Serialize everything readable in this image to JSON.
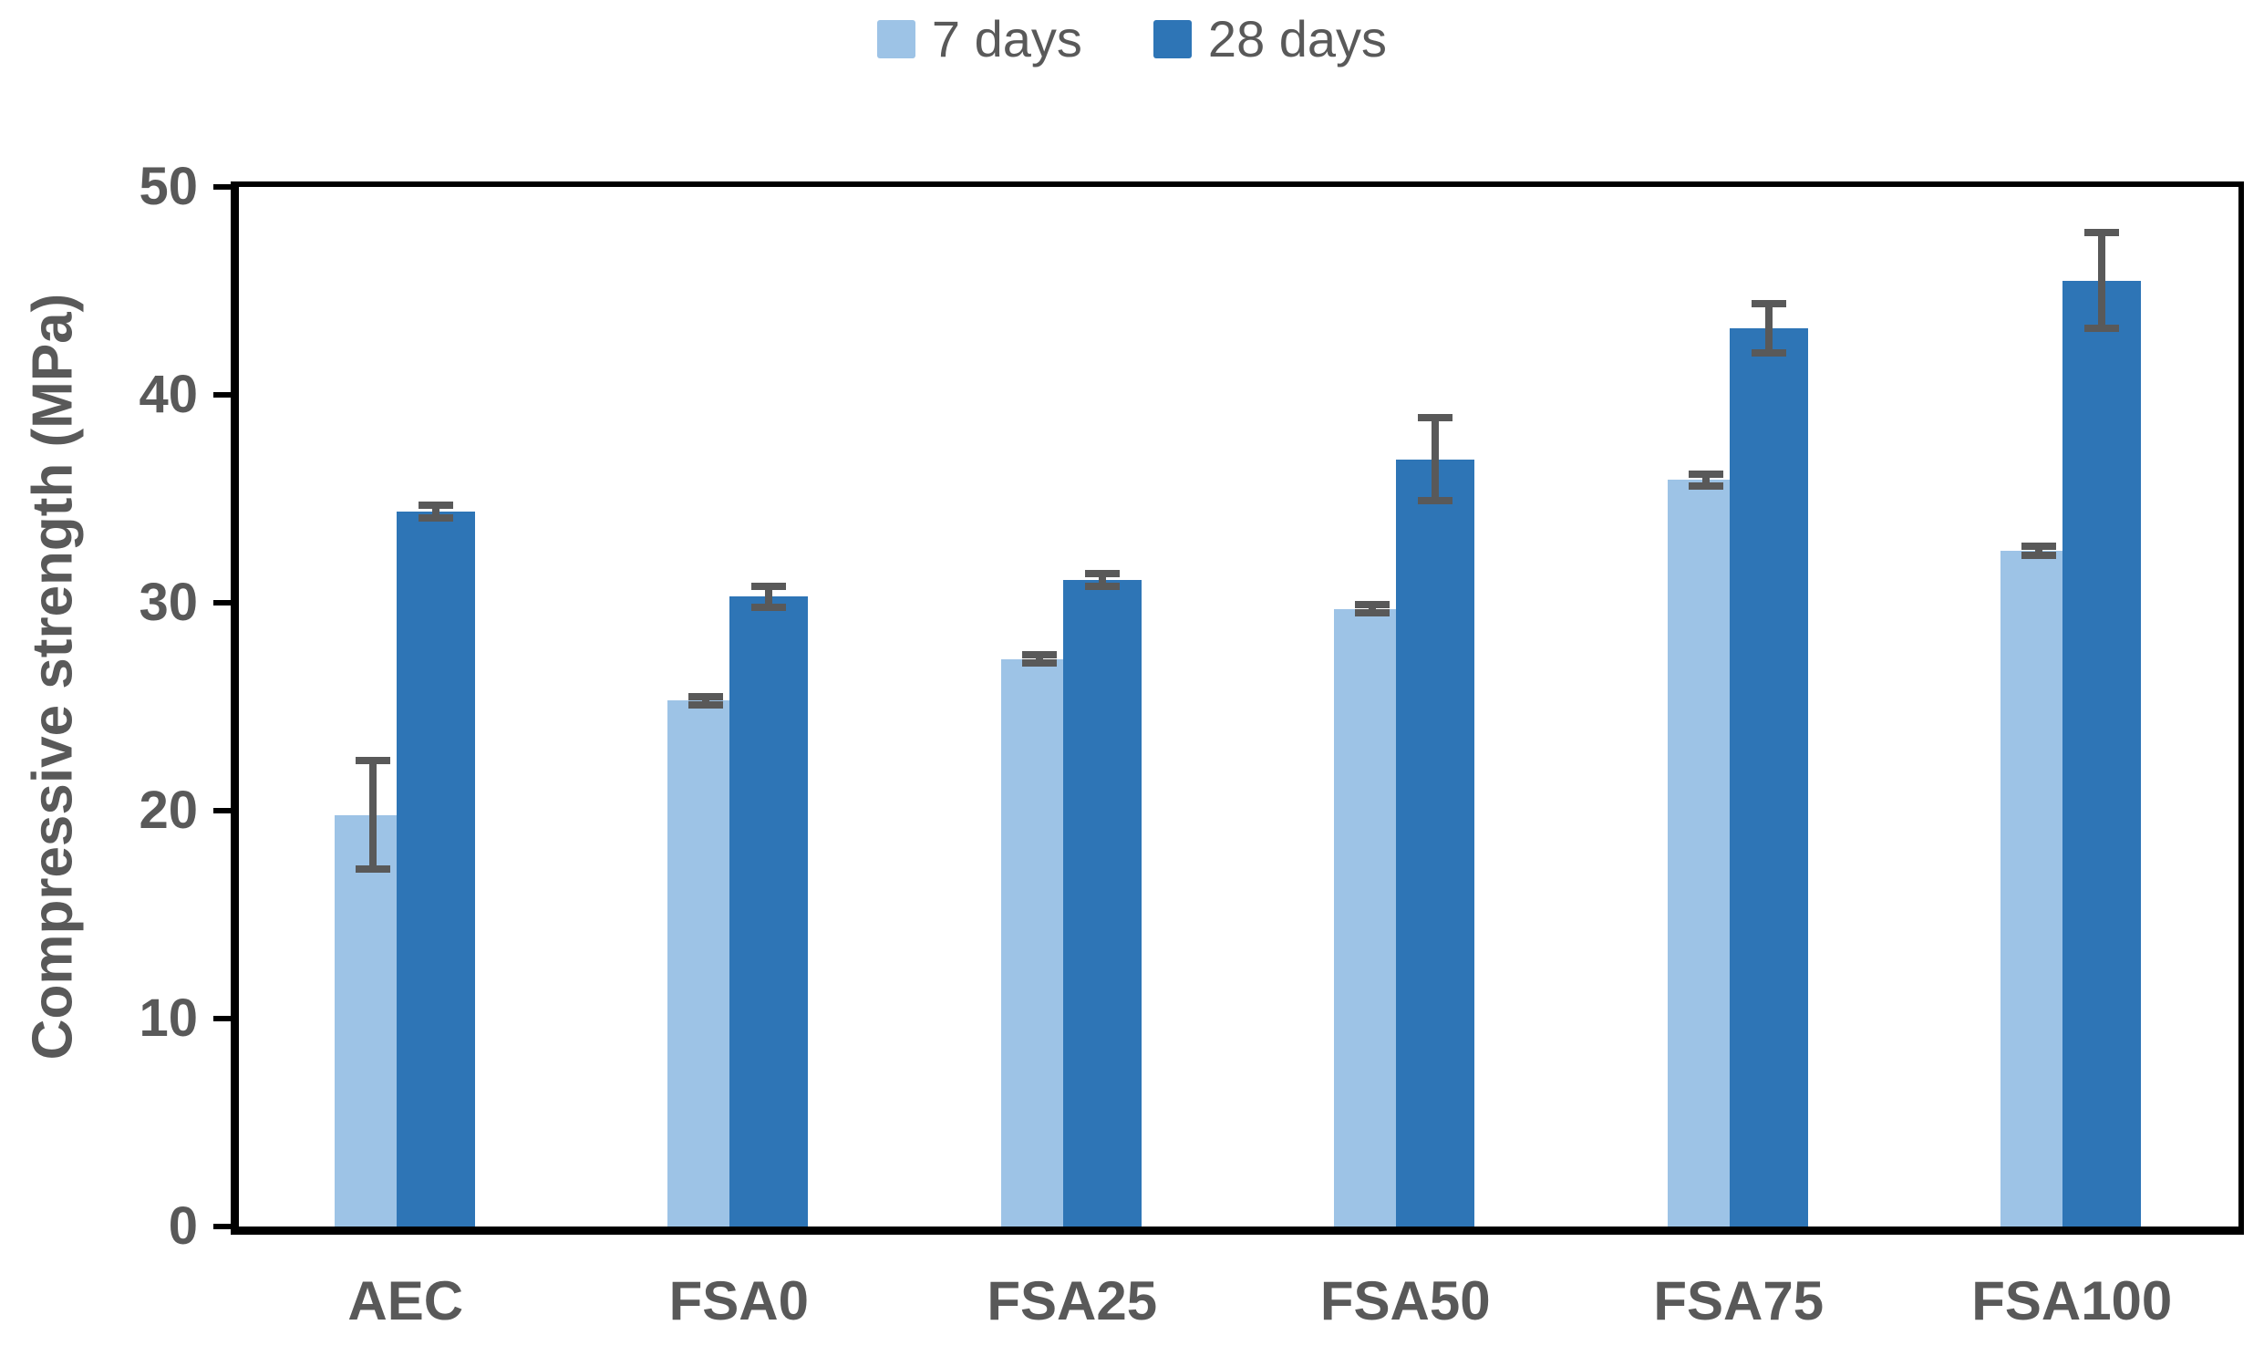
{
  "chart_data": {
    "type": "bar",
    "title": "",
    "categories": [
      "AEC",
      "FSA0",
      "FSA25",
      "FSA50",
      "FSA75",
      "FSA100"
    ],
    "series": [
      {
        "name": "7 days",
        "color": "#9DC3E6",
        "values": [
          19.8,
          25.3,
          27.3,
          29.7,
          35.9,
          32.5
        ],
        "errors": [
          2.6,
          0.2,
          0.2,
          0.2,
          0.3,
          0.2
        ]
      },
      {
        "name": "28 days",
        "color": "#2E75B6",
        "values": [
          34.4,
          30.3,
          31.1,
          36.9,
          43.2,
          45.5
        ],
        "errors": [
          0.3,
          0.5,
          0.3,
          2.0,
          1.2,
          2.3
        ]
      }
    ],
    "xlabel": "",
    "ylabel": "Compressive strength (MPa)",
    "ylim": [
      0,
      50
    ],
    "yticks": [
      0,
      10,
      20,
      30,
      40,
      50
    ],
    "legend_position": "top",
    "grid": false,
    "error_bar_color": "#595959",
    "axis_color": "#000000",
    "text_color": "#595959"
  }
}
